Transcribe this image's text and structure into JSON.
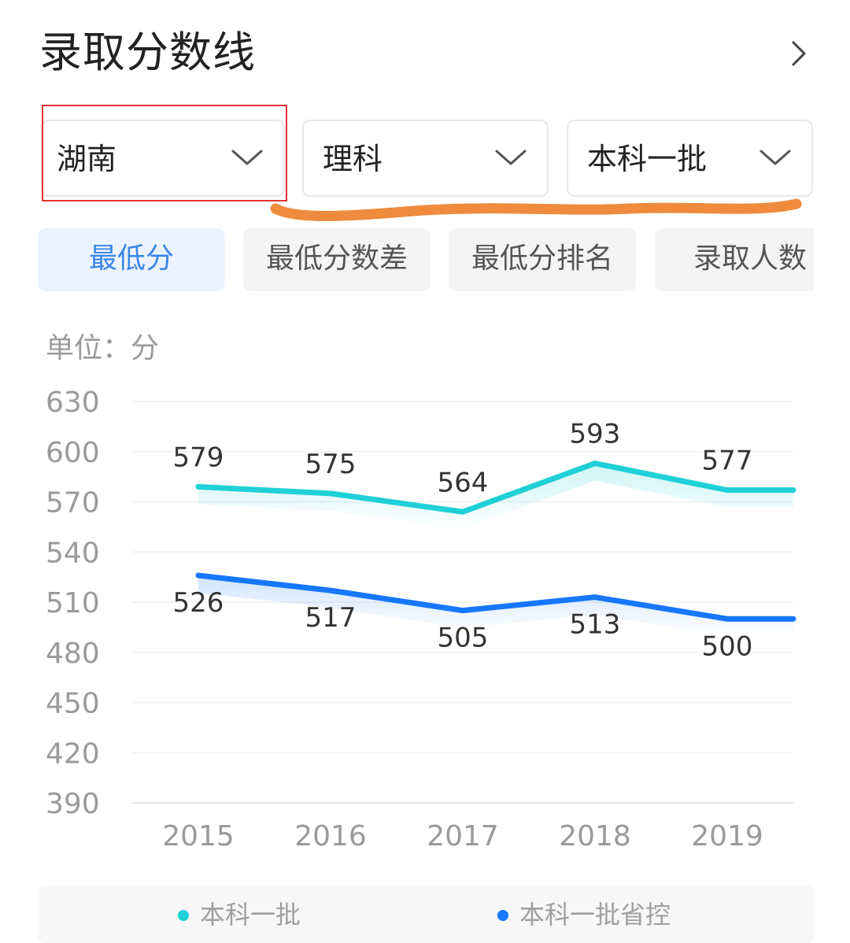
{
  "header": {
    "title": "录取分数线"
  },
  "filters": {
    "province": "湖南",
    "subject": "理科",
    "batch": "本科一批"
  },
  "tabs": [
    {
      "label": "最低分",
      "active": true
    },
    {
      "label": "最低分数差",
      "active": false
    },
    {
      "label": "最低分排名",
      "active": false
    },
    {
      "label": "录取人数",
      "active": false
    }
  ],
  "chart": {
    "unit_label": "单位：分"
  },
  "colors": {
    "series1": "#1fd0d6",
    "series2": "#1677ff",
    "accent": "#3a86e8",
    "highlight_box": "#e23333",
    "annotation_stroke": "#f08a3c"
  },
  "chart_data": {
    "type": "line",
    "categories": [
      "2015",
      "2016",
      "2017",
      "2018",
      "2019"
    ],
    "series": [
      {
        "name": "本科一批",
        "values": [
          579,
          575,
          564,
          593,
          577
        ],
        "color": "#1fd0d6"
      },
      {
        "name": "本科一批省控",
        "values": [
          526,
          517,
          505,
          513,
          500
        ],
        "color": "#1677ff"
      }
    ],
    "yticks": [
      630,
      600,
      570,
      540,
      510,
      480,
      450,
      420,
      390
    ],
    "ylim": [
      390,
      630
    ],
    "ylabel": "单位：分",
    "grid": true,
    "legend_position": "bottom"
  }
}
